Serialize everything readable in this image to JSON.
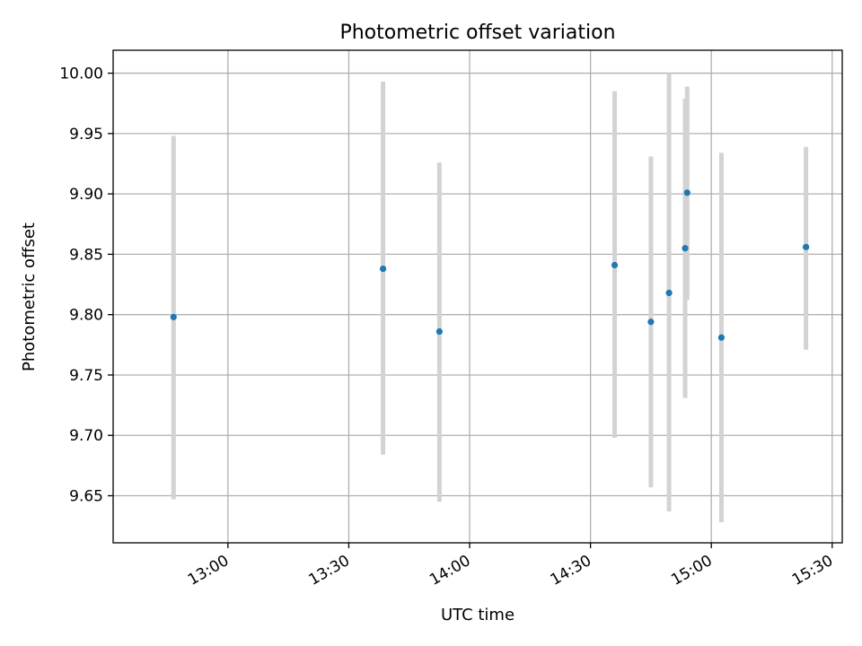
{
  "chart_data": {
    "type": "scatter",
    "title": "Photometric offset variation",
    "xlabel": "UTC time",
    "ylabel": "Photometric offset",
    "x_ticks": [
      "13:00",
      "13:30",
      "14:00",
      "14:30",
      "15:00",
      "15:30"
    ],
    "y_ticks": [
      "9.65",
      "9.70",
      "9.75",
      "9.80",
      "9.85",
      "9.90",
      "9.95",
      "10.00"
    ],
    "xlim": [
      "12:31:30",
      "15:32:30"
    ],
    "ylim": [
      9.611,
      10.019
    ],
    "grid": true,
    "colors": {
      "point": "#1f77b4",
      "errorbar": "#d3d3d3",
      "grid": "#b0b0b0"
    },
    "points": [
      {
        "time": "12:46:30",
        "value": 9.798,
        "err_low": 9.647,
        "err_high": 9.948
      },
      {
        "time": "13:38:30",
        "value": 9.838,
        "err_low": 9.684,
        "err_high": 9.993
      },
      {
        "time": "13:52:30",
        "value": 9.786,
        "err_low": 9.645,
        "err_high": 9.926
      },
      {
        "time": "14:36:00",
        "value": 9.841,
        "err_low": 9.698,
        "err_high": 9.985
      },
      {
        "time": "14:45:00",
        "value": 9.794,
        "err_low": 9.657,
        "err_high": 9.931
      },
      {
        "time": "14:49:30",
        "value": 9.818,
        "err_low": 9.637,
        "err_high": 10.0
      },
      {
        "time": "14:53:30",
        "value": 9.855,
        "err_low": 9.731,
        "err_high": 9.979
      },
      {
        "time": "14:54:00",
        "value": 9.901,
        "err_low": 9.812,
        "err_high": 9.989
      },
      {
        "time": "15:02:30",
        "value": 9.781,
        "err_low": 9.628,
        "err_high": 9.934
      },
      {
        "time": "15:23:30",
        "value": 9.856,
        "err_low": 9.771,
        "err_high": 9.939
      }
    ]
  }
}
